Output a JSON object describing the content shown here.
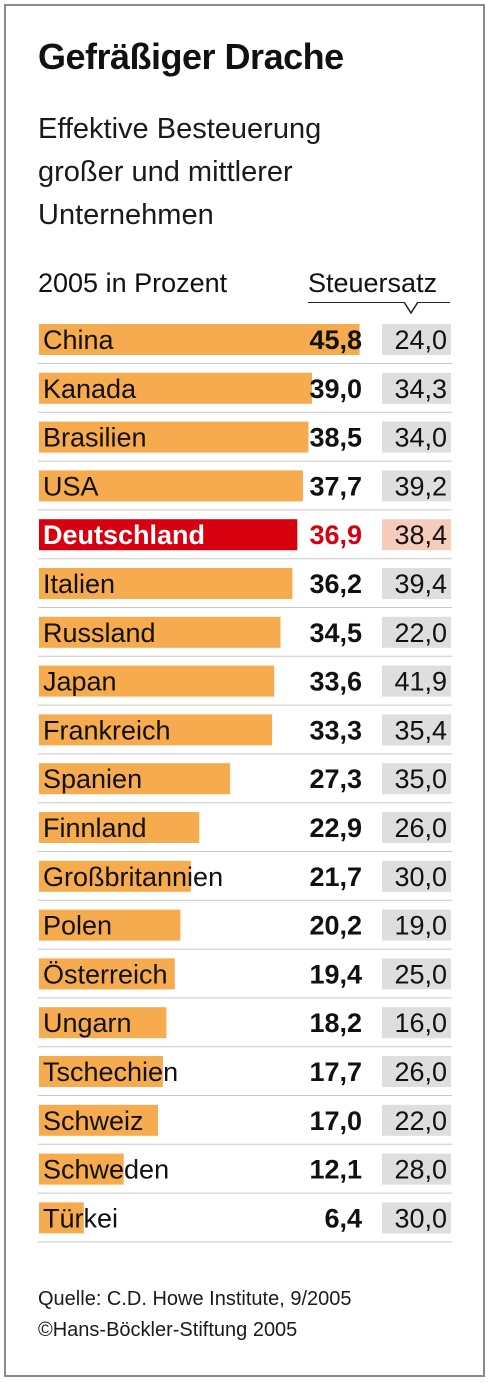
{
  "title": "Gefräßiger Drache",
  "subtitle_lines": [
    "Effektive Besteuerung",
    "großer und mittlerer",
    "Unternehmen"
  ],
  "unit_label": "2005 in Prozent",
  "rate_header": "Steuersatz",
  "source_line": "Quelle: C.D. Howe Institute, 9/2005",
  "copyright_line": "©Hans-Böckler-Stiftung 2005",
  "colors": {
    "bar": "#f5ab4e",
    "highlight_bar": "#d8000f",
    "highlight_text": "#d8000f",
    "rate_box": "#dedede",
    "highlight_rate_box": "#f6cdbd",
    "divider": "#c8c8c8"
  },
  "chart_data": {
    "type": "bar",
    "orientation": "horizontal",
    "categories": [
      "China",
      "Kanada",
      "Brasilien",
      "USA",
      "Deutschland",
      "Italien",
      "Russland",
      "Japan",
      "Frankreich",
      "Spanien",
      "Finnland",
      "Großbritannien",
      "Polen",
      "Österreich",
      "Ungarn",
      "Tschechien",
      "Schweiz",
      "Schweden",
      "Türkei"
    ],
    "value_labels": [
      "45,8",
      "39,0",
      "38,5",
      "37,7",
      "36,9",
      "36,2",
      "34,5",
      "33,6",
      "33,3",
      "27,3",
      "22,9",
      "21,7",
      "20,2",
      "19,4",
      "18,2",
      "17,7",
      "17,0",
      "12,1",
      "6,4"
    ],
    "values": [
      45.8,
      39.0,
      38.5,
      37.7,
      36.9,
      36.2,
      34.5,
      33.6,
      33.3,
      27.3,
      22.9,
      21.7,
      20.2,
      19.4,
      18.2,
      17.7,
      17.0,
      12.1,
      6.4
    ],
    "rate_labels": [
      "24,0",
      "34,3",
      "34,0",
      "39,2",
      "38,4",
      "39,4",
      "22,0",
      "41,9",
      "35,4",
      "35,0",
      "26,0",
      "30,0",
      "19,0",
      "25,0",
      "16,0",
      "26,0",
      "22,0",
      "28,0",
      "30,0"
    ],
    "rates": [
      24.0,
      34.3,
      34.0,
      39.2,
      38.4,
      39.4,
      22.0,
      41.9,
      35.4,
      35.0,
      26.0,
      30.0,
      19.0,
      25.0,
      16.0,
      26.0,
      22.0,
      28.0,
      30.0
    ],
    "highlight": "Deutschland",
    "xlim": [
      0,
      46
    ]
  }
}
